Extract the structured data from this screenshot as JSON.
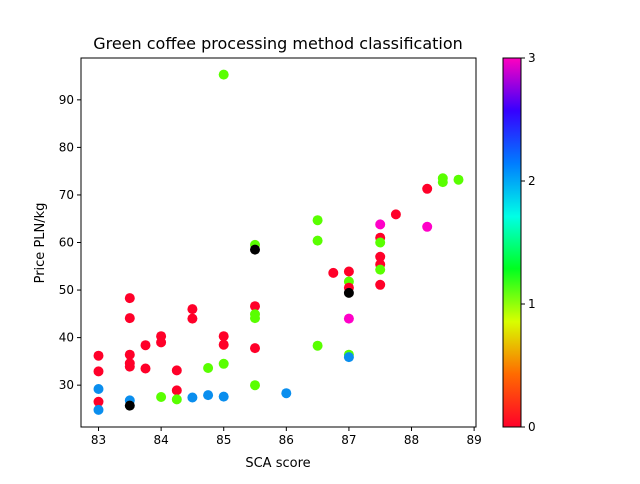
{
  "chart_data": {
    "type": "scatter",
    "title": "Green coffee processing method classification",
    "xlabel": "SCA score",
    "ylabel": "Price PLN/kg",
    "xlim": [
      82.72,
      89.03
    ],
    "ylim": [
      21.2,
      98.8
    ],
    "xticks": [
      83,
      84,
      85,
      86,
      87,
      88,
      89
    ],
    "yticks": [
      30,
      40,
      50,
      60,
      70,
      80,
      90
    ],
    "grid": false,
    "colormap": "gist_rainbow",
    "colorbar": {
      "range": [
        0,
        3
      ],
      "ticks": [
        0,
        1,
        2,
        3
      ],
      "colors": [
        "#ff0029",
        "#ff6a00",
        "#d8ff00",
        "#00ff20",
        "#00ffe6",
        "#007dff",
        "#3600ff",
        "#ff00bf"
      ]
    },
    "category_colors": {
      "0": "#ff0029",
      "1": "#59ff00",
      "2": "#0a8eee",
      "3": "#ff00c8",
      "none": "#000000"
    },
    "points": [
      {
        "x": 83.0,
        "y": 36.2,
        "c": "0"
      },
      {
        "x": 83.0,
        "y": 32.9,
        "c": "0"
      },
      {
        "x": 83.0,
        "y": 26.5,
        "c": "0"
      },
      {
        "x": 83.0,
        "y": 29.2,
        "c": "2"
      },
      {
        "x": 83.0,
        "y": 24.8,
        "c": "2"
      },
      {
        "x": 83.5,
        "y": 48.3,
        "c": "0"
      },
      {
        "x": 83.5,
        "y": 44.1,
        "c": "0"
      },
      {
        "x": 83.5,
        "y": 36.4,
        "c": "0"
      },
      {
        "x": 83.5,
        "y": 34.6,
        "c": "0"
      },
      {
        "x": 83.5,
        "y": 33.9,
        "c": "0"
      },
      {
        "x": 83.5,
        "y": 26.8,
        "c": "2"
      },
      {
        "x": 83.5,
        "y": 25.7,
        "c": "none"
      },
      {
        "x": 83.75,
        "y": 38.4,
        "c": "0"
      },
      {
        "x": 83.75,
        "y": 33.5,
        "c": "0"
      },
      {
        "x": 84.0,
        "y": 40.3,
        "c": "0"
      },
      {
        "x": 84.0,
        "y": 39.0,
        "c": "0"
      },
      {
        "x": 84.0,
        "y": 27.5,
        "c": "1"
      },
      {
        "x": 84.25,
        "y": 33.1,
        "c": "0"
      },
      {
        "x": 84.25,
        "y": 28.9,
        "c": "0"
      },
      {
        "x": 84.25,
        "y": 27.0,
        "c": "1"
      },
      {
        "x": 84.5,
        "y": 46.0,
        "c": "0"
      },
      {
        "x": 84.5,
        "y": 44.0,
        "c": "0"
      },
      {
        "x": 84.5,
        "y": 27.4,
        "c": "2"
      },
      {
        "x": 84.75,
        "y": 33.6,
        "c": "1"
      },
      {
        "x": 84.75,
        "y": 27.9,
        "c": "2"
      },
      {
        "x": 85.0,
        "y": 95.3,
        "c": "1"
      },
      {
        "x": 85.0,
        "y": 40.3,
        "c": "0"
      },
      {
        "x": 85.0,
        "y": 38.5,
        "c": "0"
      },
      {
        "x": 85.0,
        "y": 34.5,
        "c": "1"
      },
      {
        "x": 85.0,
        "y": 27.6,
        "c": "2"
      },
      {
        "x": 85.5,
        "y": 59.5,
        "c": "1"
      },
      {
        "x": 85.5,
        "y": 58.5,
        "c": "none"
      },
      {
        "x": 85.5,
        "y": 46.6,
        "c": "0"
      },
      {
        "x": 85.5,
        "y": 44.9,
        "c": "1"
      },
      {
        "x": 85.5,
        "y": 44.1,
        "c": "1"
      },
      {
        "x": 85.5,
        "y": 37.8,
        "c": "0"
      },
      {
        "x": 85.5,
        "y": 30.0,
        "c": "1"
      },
      {
        "x": 86.0,
        "y": 28.3,
        "c": "2"
      },
      {
        "x": 86.5,
        "y": 64.7,
        "c": "1"
      },
      {
        "x": 86.5,
        "y": 60.4,
        "c": "1"
      },
      {
        "x": 86.5,
        "y": 38.3,
        "c": "1"
      },
      {
        "x": 86.75,
        "y": 53.6,
        "c": "0"
      },
      {
        "x": 87.0,
        "y": 53.9,
        "c": "0"
      },
      {
        "x": 87.0,
        "y": 51.8,
        "c": "1"
      },
      {
        "x": 87.0,
        "y": 50.5,
        "c": "0"
      },
      {
        "x": 87.0,
        "y": 49.4,
        "c": "none"
      },
      {
        "x": 87.0,
        "y": 44.0,
        "c": "3"
      },
      {
        "x": 87.0,
        "y": 36.4,
        "c": "1"
      },
      {
        "x": 87.0,
        "y": 35.9,
        "c": "2"
      },
      {
        "x": 87.5,
        "y": 63.8,
        "c": "3"
      },
      {
        "x": 87.5,
        "y": 61.0,
        "c": "0"
      },
      {
        "x": 87.5,
        "y": 60.0,
        "c": "1"
      },
      {
        "x": 87.5,
        "y": 57.0,
        "c": "0"
      },
      {
        "x": 87.5,
        "y": 55.4,
        "c": "0"
      },
      {
        "x": 87.5,
        "y": 54.3,
        "c": "1"
      },
      {
        "x": 87.5,
        "y": 51.1,
        "c": "0"
      },
      {
        "x": 87.75,
        "y": 65.9,
        "c": "0"
      },
      {
        "x": 88.25,
        "y": 71.3,
        "c": "0"
      },
      {
        "x": 88.25,
        "y": 63.3,
        "c": "3"
      },
      {
        "x": 88.5,
        "y": 73.5,
        "c": "1"
      },
      {
        "x": 88.5,
        "y": 72.7,
        "c": "1"
      },
      {
        "x": 88.75,
        "y": 73.2,
        "c": "1"
      }
    ]
  }
}
